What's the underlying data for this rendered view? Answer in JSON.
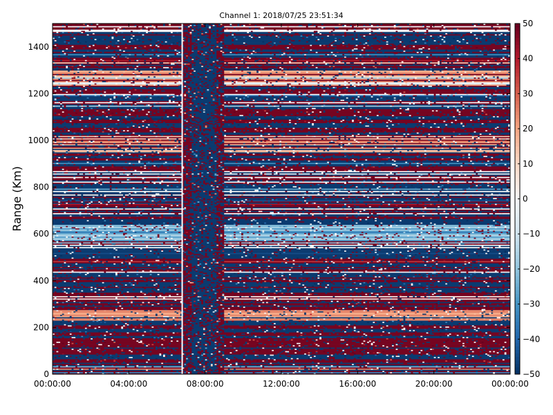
{
  "chart_data": {
    "type": "heatmap",
    "title": "Channel 1: 2018/07/25 23:51:34",
    "xlabel": "",
    "ylabel": "Range (Km)",
    "x_tick_labels": [
      "00:00:00",
      "04:00:00",
      "08:00:00",
      "12:00:00",
      "16:00:00",
      "20:00:00",
      "00:00:00"
    ],
    "xlim_hours": [
      0,
      24
    ],
    "y_ticks": [
      0,
      200,
      400,
      600,
      800,
      1000,
      1200,
      1400
    ],
    "ylim": [
      0,
      1500
    ],
    "colorbar": {
      "ticks": [
        50,
        40,
        30,
        20,
        10,
        0,
        -10,
        -20,
        -30,
        -40,
        -50
      ],
      "range": [
        -50,
        50
      ],
      "colormap": "RdBu_r",
      "colors": [
        "#053061",
        "#2166ac",
        "#4393c3",
        "#92c5de",
        "#d1e5f0",
        "#f7f7f7",
        "#fddbc7",
        "#f4a582",
        "#d6604d",
        "#b2182b",
        "#67001f"
      ]
    },
    "grid": false,
    "features": {
      "gap_line_hour": 6.8,
      "dense_band_hours": [
        6.8,
        9.0
      ],
      "range_bin_km": 5,
      "time_bin_hours": 0.1,
      "dominant_values": [
        -48,
        48
      ],
      "notable_ranges_km": [
        {
          "range": [
            560,
            640
          ],
          "value": -25
        },
        {
          "range": [
            950,
            1010
          ],
          "value": 18
        },
        {
          "range": [
            1260,
            1300
          ],
          "value": 20
        },
        {
          "range": [
            225,
            275
          ],
          "value": 28
        },
        {
          "range": [
            1240,
            1250
          ],
          "value": 0
        },
        {
          "range": [
            320,
            335
          ],
          "value": 10
        }
      ]
    }
  }
}
